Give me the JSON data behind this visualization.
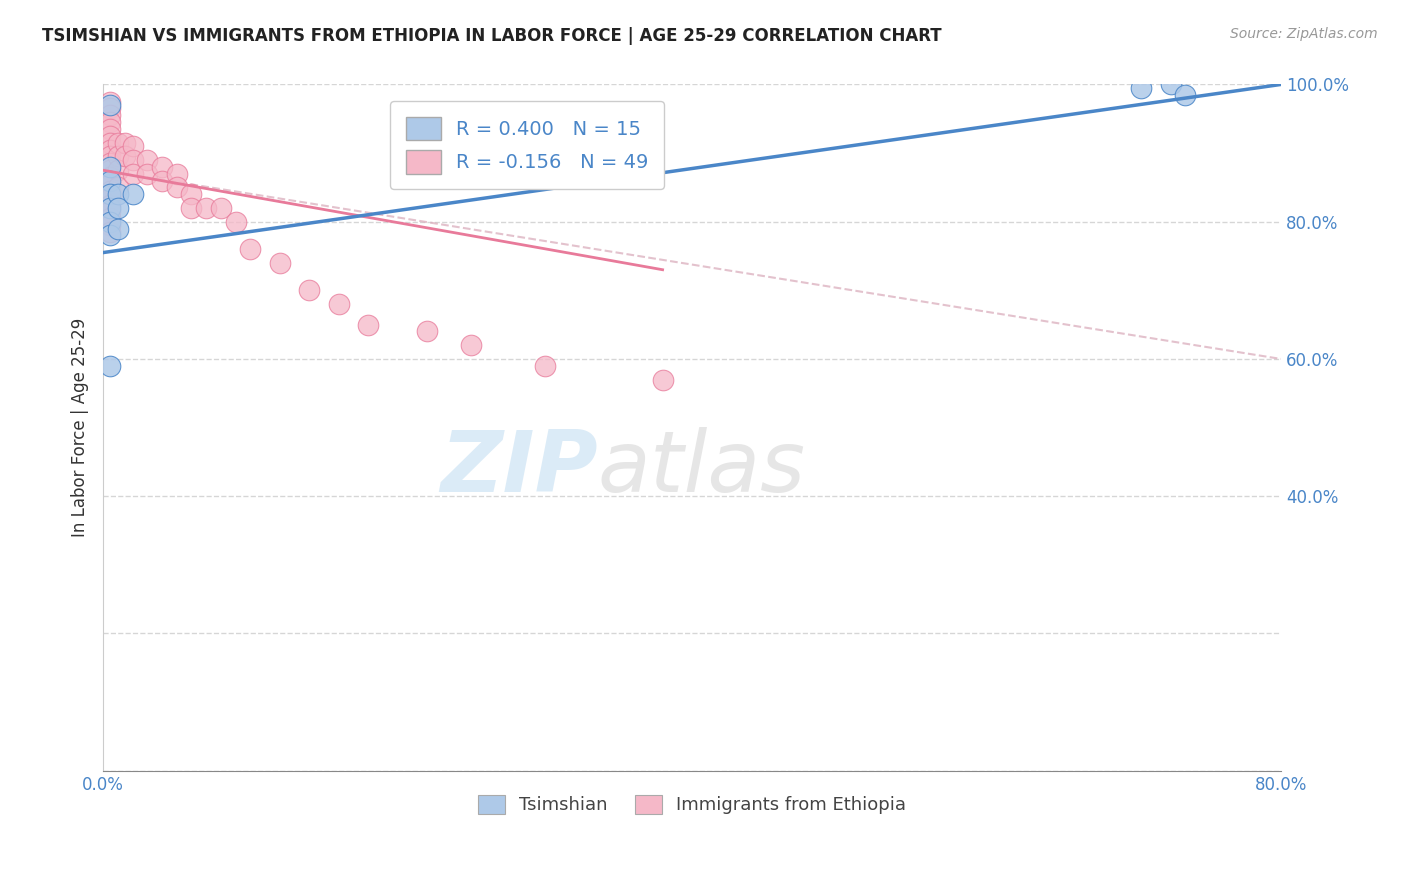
{
  "title": "TSIMSHIAN VS IMMIGRANTS FROM ETHIOPIA IN LABOR FORCE | AGE 25-29 CORRELATION CHART",
  "source": "Source: ZipAtlas.com",
  "ylabel_left": "In Labor Force | Age 25-29",
  "xlim": [
    0.0,
    0.8
  ],
  "ylim": [
    0.0,
    1.0
  ],
  "blue_label": "Tsimshian",
  "pink_label": "Immigrants from Ethiopia",
  "blue_R": 0.4,
  "blue_N": 15,
  "pink_R": -0.156,
  "pink_N": 49,
  "blue_color": "#aec9e8",
  "pink_color": "#f5b8c8",
  "blue_line_color": "#4a86c8",
  "pink_line_color": "#e87a9a",
  "gray_dash_color": "#d8a8b8",
  "background_color": "#ffffff",
  "grid_color": "#cccccc",
  "watermark_zip": "ZIP",
  "watermark_atlas": "atlas",
  "blue_scatter_x": [
    0.005,
    0.005,
    0.005,
    0.005,
    0.005,
    0.005,
    0.005,
    0.005,
    0.01,
    0.01,
    0.01,
    0.02,
    0.705,
    0.725,
    0.735
  ],
  "blue_scatter_y": [
    0.97,
    0.88,
    0.86,
    0.84,
    0.82,
    0.8,
    0.78,
    0.59,
    0.84,
    0.82,
    0.79,
    0.84,
    0.995,
    1.0,
    0.985
  ],
  "pink_scatter_x": [
    0.005,
    0.005,
    0.005,
    0.005,
    0.005,
    0.005,
    0.005,
    0.005,
    0.005,
    0.005,
    0.005,
    0.005,
    0.005,
    0.005,
    0.005,
    0.005,
    0.005,
    0.005,
    0.005,
    0.005,
    0.01,
    0.01,
    0.01,
    0.01,
    0.015,
    0.015,
    0.02,
    0.02,
    0.02,
    0.03,
    0.03,
    0.04,
    0.04,
    0.05,
    0.05,
    0.06,
    0.06,
    0.07,
    0.08,
    0.09,
    0.1,
    0.12,
    0.14,
    0.16,
    0.18,
    0.22,
    0.25,
    0.3,
    0.38
  ],
  "pink_scatter_y": [
    0.975,
    0.965,
    0.955,
    0.945,
    0.935,
    0.925,
    0.915,
    0.905,
    0.895,
    0.885,
    0.875,
    0.865,
    0.855,
    0.845,
    0.835,
    0.825,
    0.815,
    0.805,
    0.795,
    0.785,
    0.915,
    0.895,
    0.875,
    0.85,
    0.915,
    0.895,
    0.91,
    0.89,
    0.87,
    0.89,
    0.87,
    0.88,
    0.86,
    0.87,
    0.85,
    0.84,
    0.82,
    0.82,
    0.82,
    0.8,
    0.76,
    0.74,
    0.7,
    0.68,
    0.65,
    0.64,
    0.62,
    0.59,
    0.57
  ],
  "blue_line_x0": 0.0,
  "blue_line_y0": 0.755,
  "blue_line_x1": 0.8,
  "blue_line_y1": 1.0,
  "pink_line_x0": 0.0,
  "pink_line_y0": 0.875,
  "pink_line_x1": 0.38,
  "pink_line_y1": 0.73,
  "gray_line_x0": 0.0,
  "gray_line_y0": 0.875,
  "gray_line_x1": 0.8,
  "gray_line_y1": 0.6
}
